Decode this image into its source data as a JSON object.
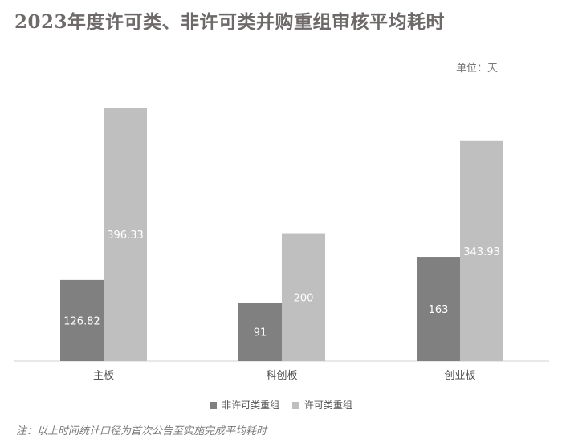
{
  "chart_data": {
    "type": "bar",
    "title": "2023年度许可类、非许可类并购重组审核平均耗时",
    "unit_label": "单位：天",
    "categories": [
      "主板",
      "科创板",
      "创业板"
    ],
    "series": [
      {
        "name": "非许可类重组",
        "values": [
          126.82,
          91,
          163
        ],
        "labels": [
          "126.82",
          "91",
          "163"
        ],
        "color": "#808080"
      },
      {
        "name": "许可类重组",
        "values": [
          396.33,
          200,
          343.93
        ],
        "labels": [
          "396.33",
          "200",
          "343.93"
        ],
        "color": "#bfbfbf"
      }
    ],
    "ylim": [
      0,
      400
    ],
    "grid": false,
    "legend_position": "bottom",
    "note": "注：以上时间统计口径为首次公告至实施完成平均耗时"
  }
}
